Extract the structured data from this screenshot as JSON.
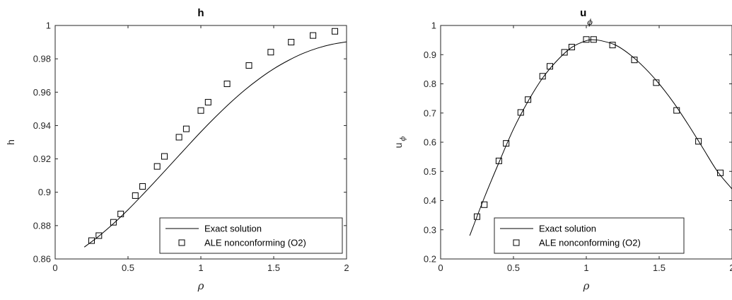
{
  "chart_data": [
    {
      "type": "line",
      "title": "h",
      "xlabel": "ρ",
      "ylabel": "h",
      "xlim": [
        0,
        2
      ],
      "ylim": [
        0.86,
        1.0
      ],
      "xticks": [
        0,
        0.5,
        1,
        1.5,
        2
      ],
      "xtick_labels": [
        "0",
        "0.5",
        "1",
        "1.5",
        "2"
      ],
      "yticks": [
        0.86,
        0.88,
        0.9,
        0.92,
        0.94,
        0.96,
        0.98,
        1.0
      ],
      "ytick_labels": [
        "0.86",
        "0.88",
        "0.9",
        "0.92",
        "0.94",
        "0.96",
        "0.98",
        "1"
      ],
      "grid": false,
      "legend_position": "bottom-right",
      "series": [
        {
          "name": "Exact solution",
          "style": "line",
          "x": [
            0.2,
            0.3,
            0.4,
            0.5,
            0.6,
            0.7,
            0.8,
            0.9,
            1.0,
            1.1,
            1.2,
            1.3,
            1.4,
            1.5,
            1.6,
            1.7,
            1.8,
            1.9,
            2.0
          ],
          "y": [
            0.8671,
            0.8737,
            0.8812,
            0.8895,
            0.8985,
            0.9078,
            0.9173,
            0.9268,
            0.9362,
            0.9451,
            0.9535,
            0.9612,
            0.968,
            0.974,
            0.979,
            0.9832,
            0.9864,
            0.9887,
            0.9902
          ]
        },
        {
          "name": "ALE nonconforming (O2)",
          "style": "square",
          "x": [
            0.25,
            0.3,
            0.4,
            0.45,
            0.55,
            0.6,
            0.7,
            0.75,
            0.85,
            0.9,
            1.0,
            1.05,
            1.18,
            1.33,
            1.48,
            1.62,
            1.77,
            1.92
          ],
          "y": [
            0.871,
            0.874,
            0.882,
            0.887,
            0.898,
            0.9035,
            0.9155,
            0.9215,
            0.933,
            0.938,
            0.949,
            0.954,
            0.965,
            0.976,
            0.984,
            0.99,
            0.994,
            0.9965
          ]
        }
      ]
    },
    {
      "type": "line",
      "title": "u",
      "title_sub": "ϕ",
      "xlabel": "ρ",
      "ylabel": "u",
      "ylabel_sub": "ϕ",
      "xlim": [
        0,
        2
      ],
      "ylim": [
        0.2,
        1.0
      ],
      "xticks": [
        0,
        0.5,
        1,
        1.5,
        2
      ],
      "xtick_labels": [
        "0",
        "0.5",
        "1",
        "1.5",
        "2"
      ],
      "yticks": [
        0.2,
        0.3,
        0.4,
        0.5,
        0.6,
        0.7,
        0.8,
        0.9,
        1.0
      ],
      "ytick_labels": [
        "0.2",
        "0.3",
        "0.4",
        "0.5",
        "0.6",
        "0.7",
        "0.8",
        "0.9",
        "1"
      ],
      "grid": false,
      "legend_position": "bottom-right",
      "series": [
        {
          "name": "Exact solution",
          "style": "line",
          "x": [
            0.2,
            0.3,
            0.4,
            0.5,
            0.6,
            0.7,
            0.8,
            0.9,
            1.0,
            1.05,
            1.1,
            1.2,
            1.3,
            1.4,
            1.5,
            1.6,
            1.7,
            1.8,
            1.9,
            2.0
          ],
          "y": [
            0.28,
            0.41,
            0.53,
            0.645,
            0.74,
            0.82,
            0.88,
            0.925,
            0.948,
            0.951,
            0.948,
            0.933,
            0.9,
            0.855,
            0.8,
            0.735,
            0.66,
            0.58,
            0.5,
            0.44
          ]
        },
        {
          "name": "ALE nonconforming (O2)",
          "style": "square",
          "x": [
            0.25,
            0.3,
            0.4,
            0.45,
            0.55,
            0.6,
            0.7,
            0.75,
            0.85,
            0.9,
            1.0,
            1.05,
            1.18,
            1.33,
            1.48,
            1.62,
            1.77,
            1.92
          ],
          "y": [
            0.345,
            0.386,
            0.536,
            0.596,
            0.702,
            0.746,
            0.826,
            0.86,
            0.908,
            0.926,
            0.952,
            0.952,
            0.933,
            0.882,
            0.804,
            0.709,
            0.603,
            0.495
          ]
        }
      ]
    }
  ]
}
